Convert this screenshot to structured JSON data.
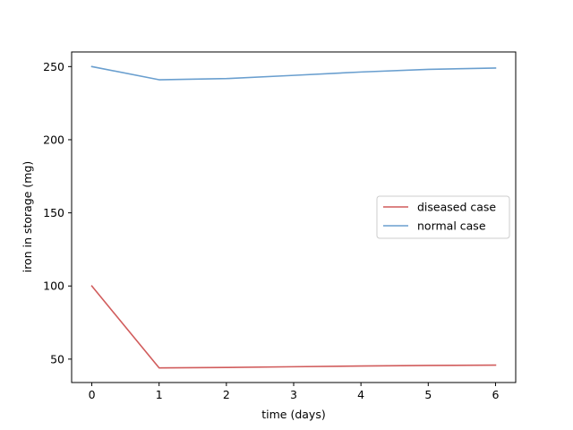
{
  "chart_data": {
    "type": "line",
    "title": "",
    "xlabel": "time (days)",
    "ylabel": "iron in storage (mg)",
    "x": [
      0,
      1,
      2,
      3,
      4,
      5,
      6
    ],
    "xlim": [
      -0.3,
      6.3
    ],
    "ylim": [
      34,
      260
    ],
    "xticks": [
      0,
      1,
      2,
      3,
      4,
      5,
      6
    ],
    "yticks": [
      50,
      100,
      150,
      200,
      250
    ],
    "grid": false,
    "legend_position": "center-right",
    "series": [
      {
        "name": "diseased case",
        "color": "#d15c5c",
        "values": [
          100,
          44,
          44.3,
          44.8,
          45.3,
          45.7,
          45.9
        ]
      },
      {
        "name": "normal case",
        "color": "#6a9fcf",
        "values": [
          250,
          241,
          241.8,
          244,
          246.3,
          248.1,
          249
        ]
      }
    ]
  }
}
